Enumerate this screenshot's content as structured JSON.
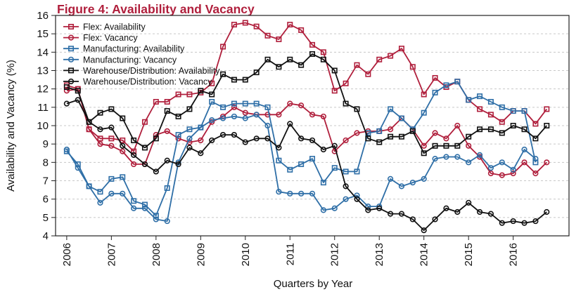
{
  "chart_data": {
    "type": "line",
    "title": "Figure 4: Availability and Vacancy",
    "title_color": "#b01f3c",
    "xlabel": "Quarters by Year",
    "ylabel": "Availability and Vacancy (%)",
    "ylim": [
      4,
      16
    ],
    "yticks": [
      4,
      5,
      6,
      7,
      8,
      9,
      10,
      11,
      12,
      13,
      14,
      15,
      16
    ],
    "xlim": [
      2005.75,
      2017.25
    ],
    "year_ticks": [
      "2006",
      "2007",
      "2008",
      "2009",
      "2010",
      "2011",
      "2012",
      "2013",
      "2014",
      "2015",
      "2016"
    ],
    "x_start_year": 2006,
    "quarters_per_year": 4,
    "grid": true,
    "legend_position": "top-left",
    "series": [
      {
        "name": "Flex: Availability",
        "color": "#b01f3c",
        "marker": "square",
        "values": [
          12.2,
          12.0,
          9.8,
          9.3,
          9.3,
          9.2,
          8.6,
          10.2,
          11.3,
          11.3,
          11.7,
          11.7,
          11.8,
          12.3,
          14.3,
          15.5,
          15.6,
          15.4,
          14.9,
          14.7,
          15.5,
          15.2,
          14.4,
          14.0,
          11.9,
          12.3,
          13.3,
          12.8,
          13.6,
          13.8,
          14.2,
          13.2,
          11.7,
          12.6,
          12.1,
          12.4,
          11.4,
          10.9,
          10.6,
          10.2,
          10.8,
          10.8,
          10.1,
          10.9
        ]
      },
      {
        "name": "Flex: Vacancy",
        "color": "#b01f3c",
        "marker": "circle",
        "values": [
          11.9,
          12.0,
          9.8,
          9.0,
          8.9,
          8.6,
          7.9,
          7.9,
          9.5,
          9.7,
          9.3,
          9.1,
          9.2,
          10.2,
          10.5,
          11.0,
          10.7,
          10.6,
          10.6,
          10.6,
          11.2,
          11.1,
          10.6,
          10.5,
          8.6,
          9.2,
          9.6,
          9.7,
          9.7,
          9.8,
          10.4,
          9.8,
          8.9,
          9.6,
          9.3,
          10.0,
          8.9,
          8.3,
          7.4,
          7.3,
          7.4,
          8.0,
          7.4,
          8.0
        ]
      },
      {
        "name": "Manufacturing: Availability",
        "color": "#2f6fa7",
        "marker": "square",
        "values": [
          8.6,
          7.9,
          6.7,
          6.4,
          7.1,
          7.2,
          5.9,
          5.7,
          5.1,
          6.6,
          9.5,
          9.8,
          9.9,
          11.3,
          11.0,
          11.2,
          11.2,
          11.2,
          11.0,
          8.1,
          7.6,
          7.9,
          8.2,
          6.9,
          7.7,
          7.5,
          7.5,
          9.6,
          9.7,
          10.9,
          10.4,
          9.8,
          10.7,
          11.8,
          12.2,
          12.4,
          11.4,
          11.6,
          11.3,
          11.0,
          10.8,
          10.8,
          8.0
        ]
      },
      {
        "name": "Manufacturing: Vacancy",
        "color": "#2f6fa7",
        "marker": "circle",
        "values": [
          8.7,
          7.7,
          6.7,
          5.8,
          6.3,
          6.3,
          5.5,
          5.5,
          4.9,
          4.8,
          8.0,
          9.3,
          9.9,
          10.3,
          10.4,
          10.5,
          10.4,
          10.6,
          10.0,
          6.4,
          6.3,
          6.3,
          6.3,
          5.4,
          5.5,
          6.0,
          6.2,
          5.6,
          5.6,
          7.1,
          6.7,
          6.9,
          7.1,
          8.2,
          8.3,
          8.3,
          8.0,
          8.4,
          7.7,
          8.0,
          7.6,
          8.7,
          8.2
        ]
      },
      {
        "name": "Warehouse/Distribution: Availability",
        "color": "#111111",
        "marker": "square",
        "values": [
          12.1,
          11.9,
          10.2,
          10.7,
          10.9,
          10.4,
          9.2,
          8.8,
          9.3,
          10.8,
          10.5,
          10.9,
          11.9,
          11.7,
          12.8,
          12.5,
          12.5,
          12.9,
          13.6,
          13.2,
          13.6,
          13.3,
          13.9,
          13.6,
          13.0,
          11.2,
          10.9,
          9.3,
          9.1,
          9.4,
          9.4,
          9.7,
          8.5,
          8.9,
          8.9,
          8.9,
          9.4,
          9.8,
          9.8,
          9.6,
          10.0,
          9.8,
          9.3,
          10.0
        ]
      },
      {
        "name": "Warehouse/Distribution: Vacancy",
        "color": "#111111",
        "marker": "circle",
        "values": [
          11.2,
          11.4,
          10.2,
          9.8,
          9.9,
          8.9,
          8.4,
          7.9,
          7.5,
          8.1,
          7.9,
          8.8,
          8.5,
          9.2,
          9.5,
          9.5,
          9.1,
          9.3,
          9.3,
          8.8,
          10.1,
          9.3,
          9.2,
          8.7,
          8.9,
          6.7,
          6.0,
          5.4,
          5.5,
          5.2,
          5.2,
          4.9,
          4.3,
          4.9,
          5.5,
          5.3,
          5.8,
          5.3,
          5.2,
          4.7,
          4.8,
          4.7,
          4.8,
          5.3
        ]
      }
    ]
  }
}
